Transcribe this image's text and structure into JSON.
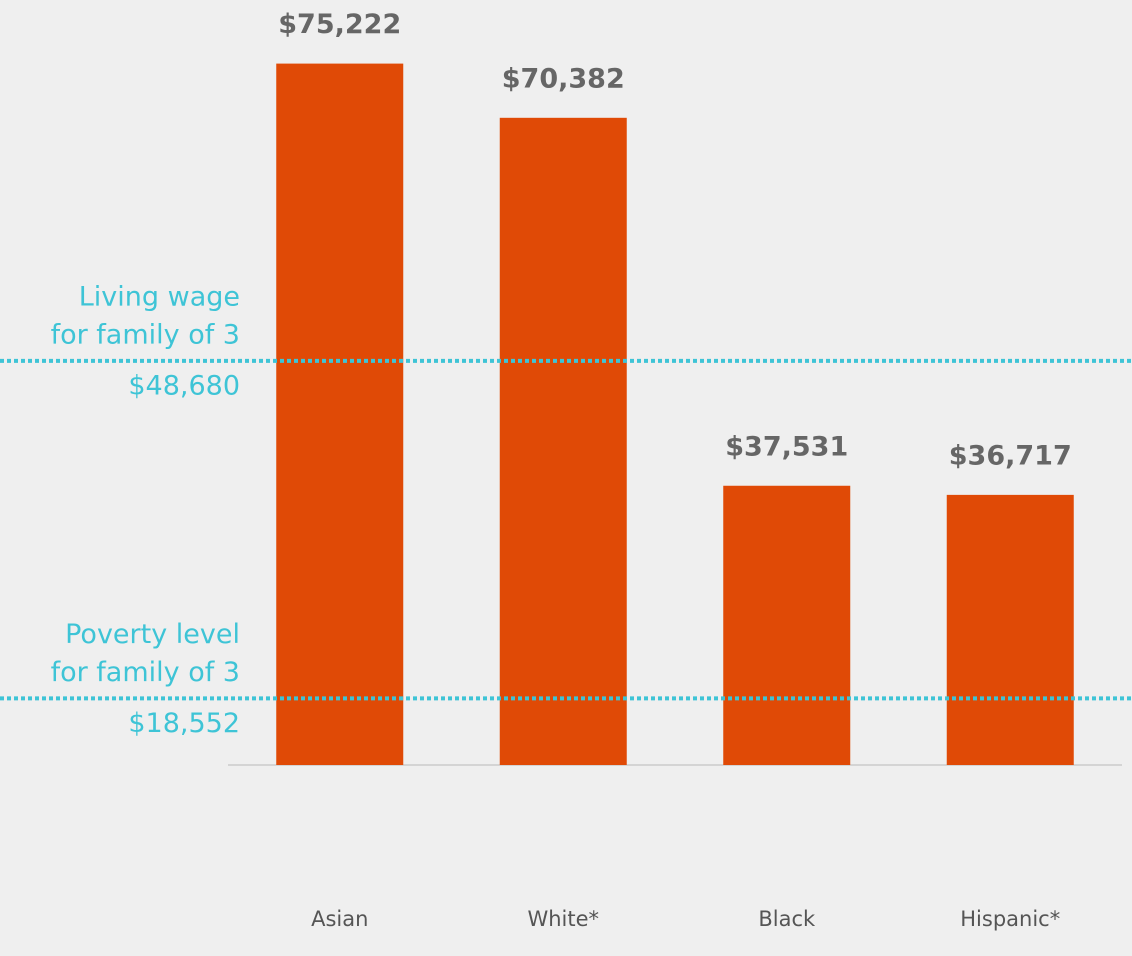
{
  "chart_data": {
    "type": "bar",
    "categories": [
      "Asian",
      "White*",
      "Black",
      "Hispanic*"
    ],
    "values": [
      75222,
      70382,
      37531,
      36717
    ],
    "value_labels": [
      "$75,222",
      "$70,382",
      "$37,531",
      "$36,717"
    ],
    "color": "#e04a06",
    "ylim": [
      12600,
      80900
    ],
    "reference_lines": [
      {
        "label": [
          "Living wage",
          "for family of 3"
        ],
        "value": 48680,
        "value_label": "$48,680",
        "color": "#3ec4d6"
      },
      {
        "label": [
          "Poverty level",
          "for family of 3"
        ],
        "value": 18552,
        "value_label": "$18,552",
        "color": "#3ec4d6"
      }
    ]
  }
}
